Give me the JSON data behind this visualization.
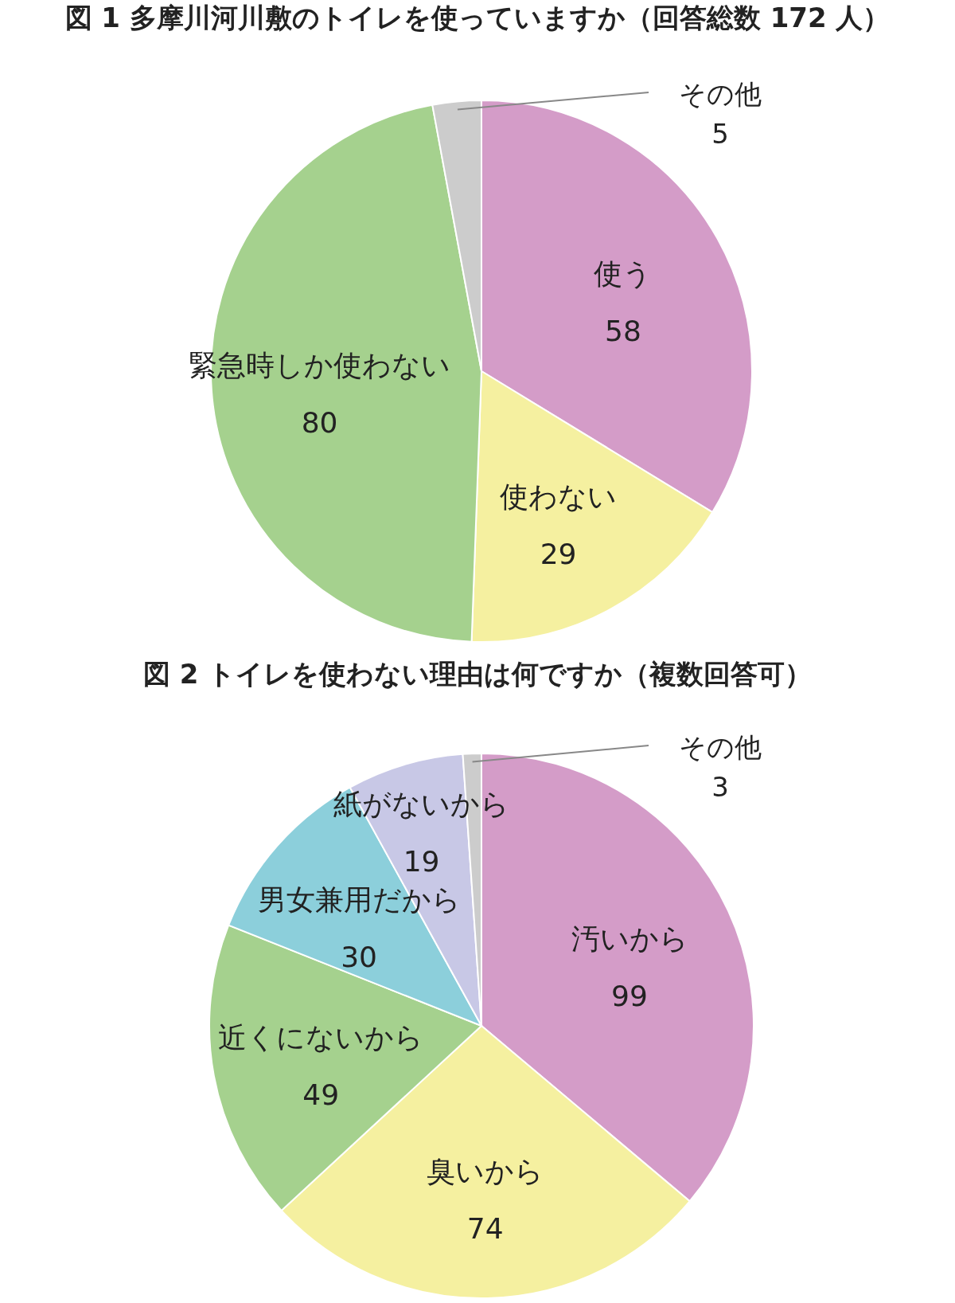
{
  "chart_data": [
    {
      "type": "pie",
      "title": "図 1 多摩川河川敷のトイレを使っていますか（回答総数 172 人）",
      "categories": [
        "使う",
        "使わない",
        "緊急時しか使わない",
        "その他"
      ],
      "values": [
        58,
        29,
        80,
        5
      ],
      "colors": [
        "#d49cc8",
        "#f5f0a0",
        "#a5d18e",
        "#cccccc"
      ],
      "data_labels": true
    },
    {
      "type": "pie",
      "title": "図 2 トイレを使わない理由は何ですか（複数回答可）",
      "categories": [
        "汚いから",
        "臭いから",
        "近くにないから",
        "男女兼用だから",
        "紙がないから",
        "その他"
      ],
      "values": [
        99,
        74,
        49,
        30,
        19,
        3
      ],
      "colors": [
        "#d49cc8",
        "#f5f0a0",
        "#a5d18e",
        "#8ccfdb",
        "#c8c8e6",
        "#cccccc"
      ],
      "data_labels": true
    }
  ]
}
